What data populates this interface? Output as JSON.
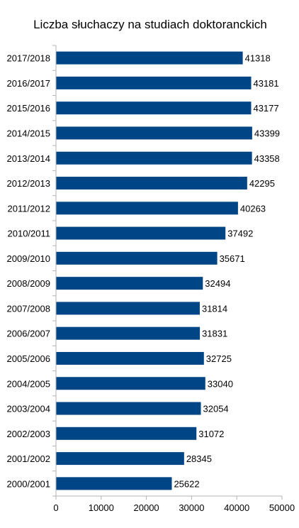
{
  "chart_data": {
    "type": "bar",
    "orientation": "horizontal",
    "title": "Liczba słuchaczy na studiach doktoranckich",
    "categories": [
      "2017/2018",
      "2016/2017",
      "2015/2016",
      "2014/2015",
      "2013/2014",
      "2012/2013",
      "2011/2012",
      "2010/2011",
      "2009/2010",
      "2008/2009",
      "2007/2008",
      "2006/2007",
      "2005/2006",
      "2004/2005",
      "2003/2004",
      "2002/2003",
      "2001/2002",
      "2000/2001"
    ],
    "values": [
      41318,
      43181,
      43177,
      43399,
      43358,
      42295,
      40263,
      37492,
      35671,
      32494,
      31814,
      31831,
      32725,
      33040,
      32054,
      31072,
      28345,
      25622
    ],
    "xlim": [
      0,
      50000
    ],
    "xticks": [
      "0",
      "10000",
      "20000",
      "30000",
      "40000",
      "50000"
    ],
    "xlabel": "",
    "ylabel": "",
    "grid": false,
    "bar_color": "#004586"
  }
}
